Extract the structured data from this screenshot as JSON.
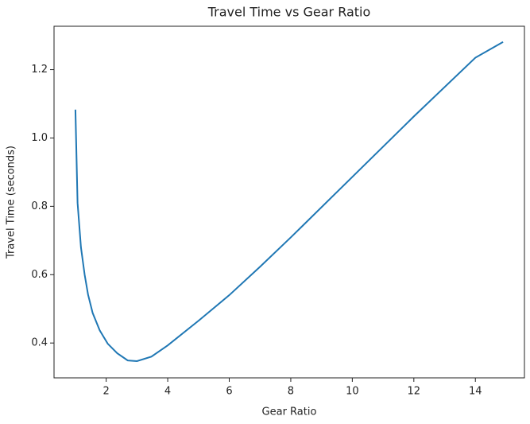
{
  "chart_data": {
    "type": "line",
    "title": "Travel Time vs Gear Ratio",
    "x_label": "Gear Ratio",
    "y_label": "Travel Time (seconds)",
    "x": [
      1.0,
      1.07,
      1.18,
      1.3,
      1.41,
      1.56,
      1.79,
      2.05,
      2.36,
      2.7,
      3.0,
      3.47,
      4.0,
      5.0,
      6.0,
      7.0,
      8.0,
      10.0,
      12.0,
      14.0,
      14.9
    ],
    "series": [
      {
        "color": "#1f77b4",
        "values": [
          1.083,
          0.81,
          0.68,
          0.6,
          0.542,
          0.488,
          0.437,
          0.398,
          0.37,
          0.349,
          0.347,
          0.36,
          0.393,
          0.465,
          0.54,
          0.623,
          0.709,
          0.886,
          1.063,
          1.235,
          1.281
        ]
      }
    ],
    "xlim": [
      0.305,
      15.595
    ],
    "xticks": [
      2,
      4,
      6,
      8,
      10,
      12,
      14
    ],
    "ylim": [
      0.298,
      1.327
    ],
    "yticks": [
      0.4,
      0.6,
      0.8,
      {
        "value": 1.0,
        "label": "1.0"
      },
      1.2
    ],
    "grid": false
  }
}
